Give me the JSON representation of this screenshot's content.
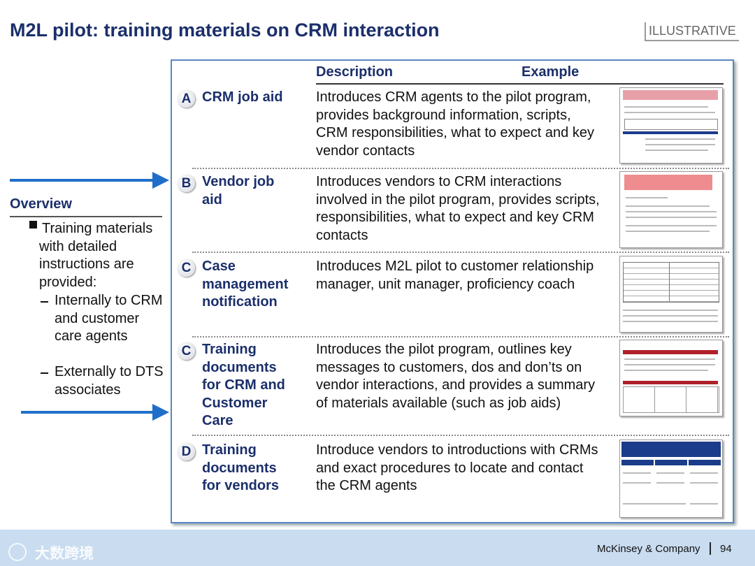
{
  "header": {
    "title": "M2L pilot: training materials on CRM interaction",
    "tag": "ILLUSTRATIVE"
  },
  "overview": {
    "heading": "Overview",
    "bullet": "Training materials with detailed instructions are provided:",
    "sub_bullets": [
      "Internally to CRM and customer care agents",
      "Externally to DTS associates"
    ]
  },
  "table": {
    "columns": [
      "Description",
      "Example"
    ],
    "rows": [
      {
        "letter": "A",
        "name": "CRM job aid",
        "description": "Introduces CRM agents to the pilot program, provides background information, scripts, CRM responsibilities, what to expect and key vendor contacts"
      },
      {
        "letter": "B",
        "name": "Vendor job aid",
        "description": "Introduces vendors to CRM interactions involved in the pilot program, provides scripts, responsibilities, what to expect and key CRM contacts"
      },
      {
        "letter": "C",
        "name": "Case management notification",
        "description": "Introduces M2L pilot to customer relationship manager, unit manager, proficiency coach"
      },
      {
        "letter": "C",
        "name": "Training documents for CRM and Customer Care",
        "description": "Introduces the pilot program, outlines key messages to customers, dos and don’ts on vendor interactions, and provides a summary of materials available (such as job aids)"
      },
      {
        "letter": "D",
        "name": "Training documents for vendors",
        "description": "Introduce vendors to introductions with CRMs and exact procedures to locate and contact the CRM agents"
      }
    ]
  },
  "footer": {
    "watermark": "大数跨境",
    "company": "McKinsey & Company",
    "page": 94
  }
}
